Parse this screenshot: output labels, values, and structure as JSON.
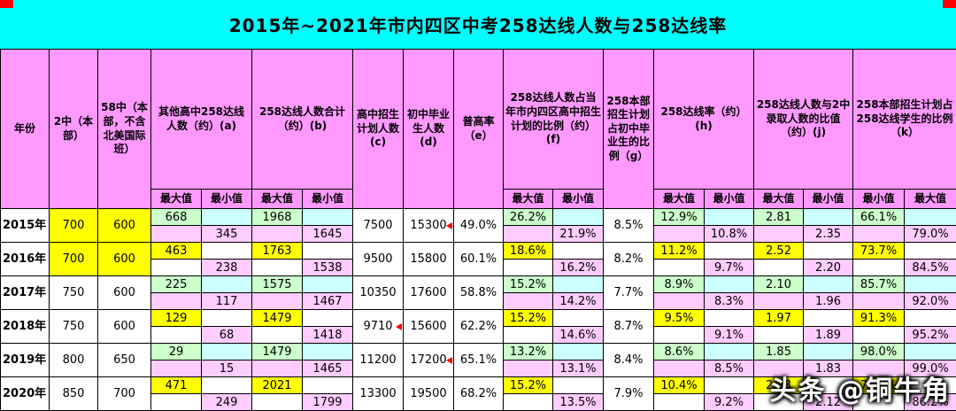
{
  "title": "2015年~2021年市内四区中考258达线人数与258达线率",
  "watermark": {
    "text": "头条 @铜牛角"
  },
  "subheaders": {
    "max": "最大值",
    "min": "最小值"
  },
  "colors": {
    "title_bg": "#00FFFF",
    "header_bg": "#FF99FF",
    "max_cell_green": "#CCFFCC",
    "empty_cell_cyan": "#CCFFFF",
    "min_cell_pink": "#FFCCFF",
    "highlight_yellow": "#FFFF00",
    "corner_mark_red": "#FE0000"
  },
  "chart_data": {
    "type": "table",
    "title": "2015年~2021年市内四区中考258达线人数与258达线率",
    "columns": {
      "year": "年份",
      "s2": "2中（本部）",
      "s58": "58中（本部，不含北美国际班）",
      "a": "其他高中258达线人数（约）(a)",
      "b": "258达线人数合计（约）(b)",
      "c": "高中招生计划人数(c)",
      "d": "初中毕业生人数(d)",
      "e": "普高率（e）",
      "f": "258达线人数占当年市内四区高中招生计划的比例（约）(f)",
      "g": "258本部招生计划占初中毕业生的比例（g）",
      "h": "258达线率（约）(h)",
      "j": "258达线人数与2中录取人数的比值（约）(j)",
      "k": "258本部招生计划占258达线学生的比例（k）"
    },
    "rows": [
      {
        "year": "2015年",
        "theme": "green",
        "schools_highlight": true,
        "s2": "700",
        "s58": "600",
        "a_max": "668",
        "a_min": "345",
        "b_max": "1968",
        "b_min": "1645",
        "c": "7500",
        "d": "15300",
        "e": "49.0%",
        "f_max": "26.2%",
        "f_min": "21.9%",
        "g": "8.5%",
        "h_max": "12.9%",
        "h_min": "10.8%",
        "j_max": "2.81",
        "j_min": "2.35",
        "k_min": "66.1%",
        "k_max": "79.0%",
        "comment_c": false,
        "comment_d": true
      },
      {
        "year": "2016年",
        "theme": "yellow",
        "schools_highlight": true,
        "s2": "700",
        "s58": "600",
        "a_max": "463",
        "a_min": "238",
        "b_max": "1763",
        "b_min": "1538",
        "c": "9500",
        "d": "15800",
        "e": "60.1%",
        "f_max": "18.6%",
        "f_min": "16.2%",
        "g": "8.2%",
        "h_max": "11.2%",
        "h_min": "9.7%",
        "j_max": "2.52",
        "j_min": "2.20",
        "k_min": "73.7%",
        "k_max": "84.5%",
        "comment_c": false,
        "comment_d": false
      },
      {
        "year": "2017年",
        "theme": "green",
        "schools_highlight": false,
        "s2": "750",
        "s58": "600",
        "a_max": "225",
        "a_min": "117",
        "b_max": "1575",
        "b_min": "1467",
        "c": "10350",
        "d": "17600",
        "e": "58.8%",
        "f_max": "15.2%",
        "f_min": "14.2%",
        "g": "7.7%",
        "h_max": "8.9%",
        "h_min": "8.3%",
        "j_max": "2.10",
        "j_min": "1.96",
        "k_min": "85.7%",
        "k_max": "92.0%",
        "comment_c": false,
        "comment_d": false
      },
      {
        "year": "2018年",
        "theme": "yellow",
        "schools_highlight": false,
        "s2": "750",
        "s58": "600",
        "a_max": "129",
        "a_min": "68",
        "b_max": "1479",
        "b_min": "1418",
        "c": "9710",
        "d": "15600",
        "e": "62.2%",
        "f_max": "15.2%",
        "f_min": "14.6%",
        "g": "8.7%",
        "h_max": "9.5%",
        "h_min": "9.1%",
        "j_max": "1.97",
        "j_min": "1.89",
        "k_min": "91.3%",
        "k_max": "95.2%",
        "comment_c": true,
        "comment_d": false
      },
      {
        "year": "2019年",
        "theme": "green",
        "schools_highlight": false,
        "s2": "800",
        "s58": "650",
        "a_max": "29",
        "a_min": "15",
        "b_max": "1479",
        "b_min": "1465",
        "c": "11200",
        "d": "17200",
        "e": "65.1%",
        "f_max": "13.2%",
        "f_min": "13.1%",
        "g": "8.4%",
        "h_max": "8.6%",
        "h_min": "8.5%",
        "j_max": "1.85",
        "j_min": "1.83",
        "k_min": "98.0%",
        "k_max": "99.0%",
        "comment_c": false,
        "comment_d": true
      },
      {
        "year": "2020年",
        "theme": "yellow",
        "schools_highlight": false,
        "s2": "850",
        "s58": "700",
        "a_max": "471",
        "a_min": "249",
        "b_max": "2021",
        "b_min": "1799",
        "c": "13300",
        "d": "19500",
        "e": "68.2%",
        "f_max": "15.2%",
        "f_min": "13.5%",
        "g": "7.9%",
        "h_max": "10.4%",
        "h_min": "9.2%",
        "j_max": "2.38",
        "j_min": "2.12",
        "k_min": "76.7%",
        "k_max": "86.2%",
        "comment_c": false,
        "comment_d": false
      }
    ]
  }
}
